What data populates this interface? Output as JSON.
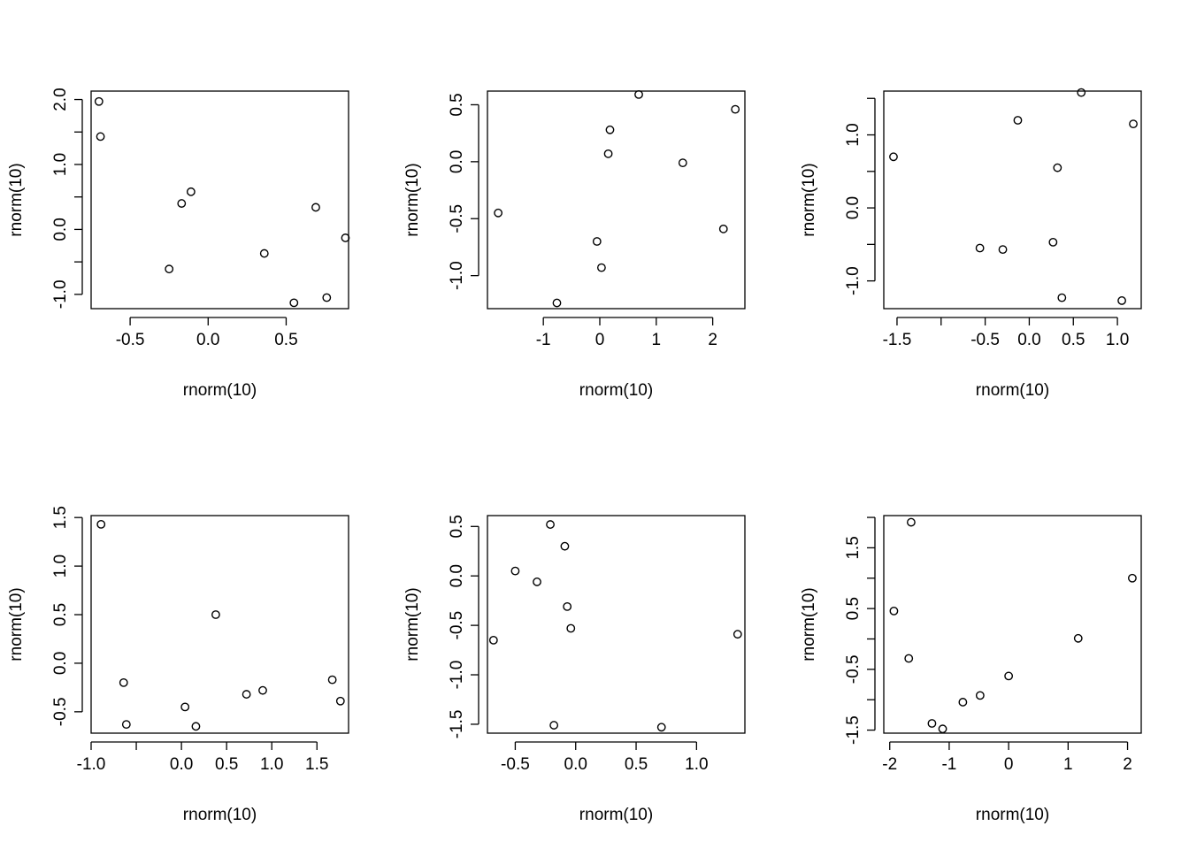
{
  "chart_data": [
    {
      "type": "scatter",
      "xlabel": "rnorm(10)",
      "ylabel": "rnorm(10)",
      "xlim": [
        -0.75,
        0.9
      ],
      "ylim": [
        -1.22,
        2.13
      ],
      "xticks": [
        -0.5,
        0.0,
        0.5
      ],
      "xtick_labels": [
        "-0.5",
        "0.0",
        "0.5"
      ],
      "xminor_ticks": [],
      "yticks": [
        -1.0,
        0.0,
        1.0,
        2.0
      ],
      "ytick_labels": [
        "-1.0",
        "0.0",
        "1.0",
        "2.0"
      ],
      "yminor_ticks": [
        -0.5,
        0.5,
        1.5
      ],
      "points": [
        [
          -0.7,
          1.97
        ],
        [
          -0.69,
          1.43
        ],
        [
          -0.17,
          0.4
        ],
        [
          -0.11,
          0.58
        ],
        [
          -0.25,
          -0.61
        ],
        [
          0.36,
          -0.37
        ],
        [
          0.69,
          0.34
        ],
        [
          0.55,
          -1.13
        ],
        [
          0.76,
          -1.05
        ],
        [
          0.88,
          -0.13
        ]
      ]
    },
    {
      "type": "scatter",
      "xlabel": "rnorm(10)",
      "ylabel": "rnorm(10)",
      "xlim": [
        -1.99,
        2.57
      ],
      "ylim": [
        -1.29,
        0.62
      ],
      "xticks": [
        -1,
        0,
        1,
        2
      ],
      "xtick_labels": [
        "-1",
        "0",
        "1",
        "2"
      ],
      "xminor_ticks": [],
      "yticks": [
        -1.0,
        -0.5,
        0.0,
        0.5
      ],
      "ytick_labels": [
        "-1.0",
        "-0.5",
        "0.0",
        "0.5"
      ],
      "yminor_ticks": [],
      "points": [
        [
          -1.8,
          -0.45
        ],
        [
          -0.76,
          -1.24
        ],
        [
          -0.05,
          -0.7
        ],
        [
          0.03,
          -0.93
        ],
        [
          0.15,
          0.07
        ],
        [
          0.18,
          0.28
        ],
        [
          0.69,
          0.59
        ],
        [
          1.47,
          -0.01
        ],
        [
          2.19,
          -0.59
        ],
        [
          2.4,
          0.46
        ]
      ]
    },
    {
      "type": "scatter",
      "xlabel": "rnorm(10)",
      "ylabel": "rnorm(10)",
      "xlim": [
        -1.65,
        1.27
      ],
      "ylim": [
        -1.38,
        1.6
      ],
      "xticks": [
        -1.5,
        -0.5,
        0.0,
        0.5,
        1.0
      ],
      "xtick_labels": [
        "-1.5",
        "-0.5",
        "0.0",
        "0.5",
        "1.0"
      ],
      "xminor_ticks": [
        -1.0
      ],
      "yticks": [
        -1.0,
        0.0,
        1.0
      ],
      "ytick_labels": [
        "-1.0",
        "0.0",
        "1.0"
      ],
      "yminor_ticks": [
        -0.5,
        0.5,
        1.5
      ],
      "points": [
        [
          -1.54,
          0.7
        ],
        [
          -0.56,
          -0.55
        ],
        [
          -0.3,
          -0.57
        ],
        [
          -0.13,
          1.2
        ],
        [
          0.27,
          -0.47
        ],
        [
          0.32,
          0.55
        ],
        [
          0.37,
          -1.23
        ],
        [
          0.59,
          1.58
        ],
        [
          1.05,
          -1.27
        ],
        [
          1.18,
          1.15
        ]
      ]
    },
    {
      "type": "scatter",
      "xlabel": "rnorm(10)",
      "ylabel": "rnorm(10)",
      "xlim": [
        -1.0,
        1.85
      ],
      "ylim": [
        -0.72,
        1.52
      ],
      "xticks": [
        -1.0,
        0.0,
        0.5,
        1.0,
        1.5
      ],
      "xtick_labels": [
        "-1.0",
        "0.0",
        "0.5",
        "1.0",
        "1.5"
      ],
      "xminor_ticks": [
        -0.5
      ],
      "yticks": [
        -0.5,
        0.0,
        0.5,
        1.0,
        1.5
      ],
      "ytick_labels": [
        "-0.5",
        "0.0",
        "0.5",
        "1.0",
        "1.5"
      ],
      "yminor_ticks": [],
      "points": [
        [
          -0.89,
          1.43
        ],
        [
          -0.64,
          -0.2
        ],
        [
          -0.61,
          -0.63
        ],
        [
          0.04,
          -0.45
        ],
        [
          0.16,
          -0.65
        ],
        [
          0.38,
          0.5
        ],
        [
          0.72,
          -0.32
        ],
        [
          0.9,
          -0.28
        ],
        [
          1.67,
          -0.17
        ],
        [
          1.76,
          -0.39
        ]
      ]
    },
    {
      "type": "scatter",
      "xlabel": "rnorm(10)",
      "ylabel": "rnorm(10)",
      "xlim": [
        -0.73,
        1.4
      ],
      "ylim": [
        -1.59,
        0.61
      ],
      "xticks": [
        -0.5,
        0.0,
        0.5,
        1.0
      ],
      "xtick_labels": [
        "-0.5",
        "0.0",
        "0.5",
        "1.0"
      ],
      "xminor_ticks": [],
      "yticks": [
        -1.5,
        -1.0,
        -0.5,
        0.0,
        0.5
      ],
      "ytick_labels": [
        "-1.5",
        "-1.0",
        "-0.5",
        "0.0",
        "0.5"
      ],
      "yminor_ticks": [],
      "points": [
        [
          -0.68,
          -0.65
        ],
        [
          -0.5,
          0.05
        ],
        [
          -0.32,
          -0.06
        ],
        [
          -0.21,
          0.52
        ],
        [
          -0.18,
          -1.51
        ],
        [
          -0.09,
          0.3
        ],
        [
          -0.07,
          -0.31
        ],
        [
          -0.04,
          -0.53
        ],
        [
          0.71,
          -1.53
        ],
        [
          1.34,
          -0.59
        ]
      ]
    },
    {
      "type": "scatter",
      "xlabel": "rnorm(10)",
      "ylabel": "rnorm(10)",
      "xlim": [
        -2.1,
        2.23
      ],
      "ylim": [
        -1.55,
        2.03
      ],
      "xticks": [
        -2,
        -1,
        0,
        1,
        2
      ],
      "xtick_labels": [
        "-2",
        "-1",
        "0",
        "1",
        "2"
      ],
      "xminor_ticks": [],
      "yticks": [
        -1.5,
        -0.5,
        0.5,
        1.5
      ],
      "ytick_labels": [
        "-1.5",
        "-0.5",
        "0.5",
        "1.5"
      ],
      "yminor_ticks": [
        -1.0,
        0.0,
        1.0,
        2.0
      ],
      "points": [
        [
          -1.93,
          0.46
        ],
        [
          -1.68,
          -0.32
        ],
        [
          -1.64,
          1.92
        ],
        [
          -1.29,
          -1.39
        ],
        [
          -1.11,
          -1.48
        ],
        [
          -0.77,
          -1.04
        ],
        [
          -0.48,
          -0.93
        ],
        [
          0.0,
          -0.61
        ],
        [
          1.17,
          0.01
        ],
        [
          2.08,
          1.0
        ]
      ]
    }
  ]
}
